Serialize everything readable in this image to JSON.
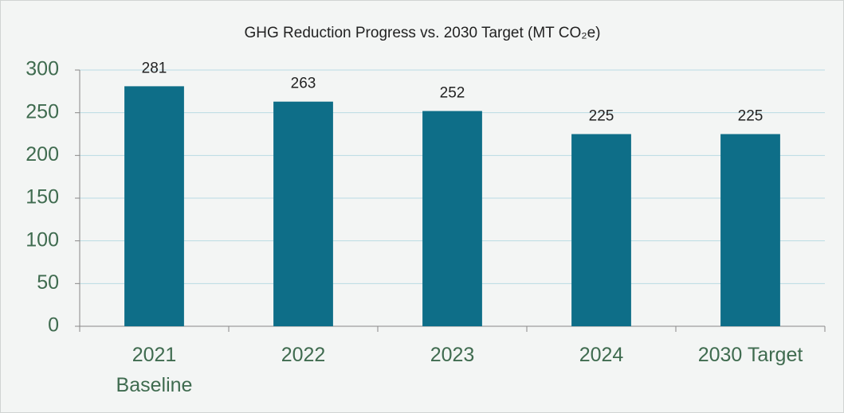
{
  "chart_data": {
    "type": "bar",
    "title": "GHG Reduction Progress vs. 2030 Target (MT CO₂e)",
    "categories": [
      "2021\nBaseline",
      "2022",
      "2023",
      "2024",
      "2030 Target"
    ],
    "values": [
      281,
      263,
      252,
      225,
      225
    ],
    "color": "#0e6e88",
    "ylim": [
      0,
      300
    ],
    "yticks": [
      0,
      50,
      100,
      150,
      200,
      250,
      300
    ],
    "grid": true
  }
}
